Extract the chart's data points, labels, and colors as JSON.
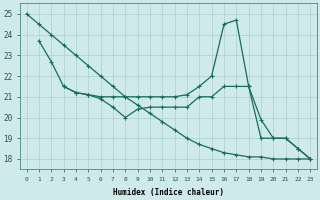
{
  "xlabel": "Humidex (Indice chaleur)",
  "background_color": "#ceeaea",
  "line_color": "#1a6b5a",
  "grid_color": "#aecece",
  "xlim": [
    -0.5,
    23.5
  ],
  "ylim": [
    17.5,
    25.5
  ],
  "yticks": [
    18,
    19,
    20,
    21,
    22,
    23,
    24,
    25
  ],
  "xticks": [
    0,
    1,
    2,
    3,
    4,
    5,
    6,
    7,
    8,
    9,
    10,
    11,
    12,
    13,
    14,
    15,
    16,
    17,
    18,
    19,
    20,
    21,
    22,
    23
  ],
  "series": [
    {
      "x": [
        0,
        1,
        2,
        3,
        4,
        5,
        6,
        7,
        8,
        9,
        10,
        11,
        12,
        13,
        14,
        15,
        16,
        17,
        18,
        19,
        20,
        21,
        22,
        23
      ],
      "y": [
        25.0,
        24.5,
        24.0,
        23.5,
        23.0,
        22.5,
        22.0,
        21.5,
        21.0,
        20.6,
        20.2,
        19.8,
        19.4,
        19.0,
        18.7,
        18.5,
        18.3,
        18.2,
        18.1,
        18.1,
        18.0,
        18.0,
        18.0,
        18.0
      ]
    },
    {
      "x": [
        1,
        2,
        3,
        4,
        5,
        6,
        7,
        8,
        9,
        10,
        11,
        12,
        13,
        14,
        15,
        16,
        17,
        18,
        19,
        20,
        21,
        22,
        23
      ],
      "y": [
        23.7,
        22.7,
        21.5,
        21.2,
        21.1,
        21.0,
        21.0,
        21.0,
        21.0,
        21.0,
        21.0,
        21.0,
        21.1,
        21.5,
        22.0,
        24.5,
        24.7,
        21.5,
        19.0,
        19.0,
        19.0,
        18.5,
        18.0
      ]
    },
    {
      "x": [
        3,
        4,
        5,
        6,
        7,
        8,
        9,
        10,
        11,
        12,
        13,
        14,
        15,
        16,
        17,
        18,
        19,
        20,
        21,
        22,
        23
      ],
      "y": [
        21.5,
        21.2,
        21.1,
        20.9,
        20.5,
        20.0,
        20.4,
        20.5,
        20.5,
        20.5,
        20.5,
        21.0,
        21.0,
        21.5,
        21.5,
        21.5,
        19.9,
        19.0,
        19.0,
        18.5,
        18.0
      ]
    }
  ]
}
